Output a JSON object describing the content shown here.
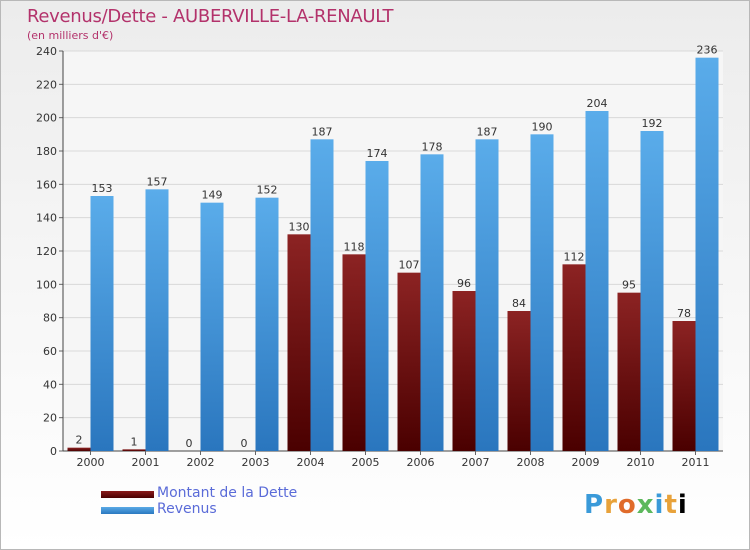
{
  "chart_data": {
    "type": "bar",
    "title": "Revenus/Dette - AUBERVILLE-LA-RENAULT",
    "subtitle": "(en milliers d'€)",
    "categories": [
      "2000",
      "2001",
      "2002",
      "2003",
      "2004",
      "2005",
      "2006",
      "2007",
      "2008",
      "2009",
      "2010",
      "2011"
    ],
    "series": [
      {
        "name": "Montant de la Dette",
        "color": "#7a0a0a",
        "values": [
          2,
          1,
          0,
          0,
          130,
          118,
          107,
          96,
          84,
          112,
          95,
          78
        ]
      },
      {
        "name": "Revenus",
        "color": "#3c8fd6",
        "values": [
          153,
          157,
          149,
          152,
          187,
          174,
          178,
          187,
          190,
          204,
          192,
          236
        ]
      }
    ],
    "ylim": [
      0,
      240
    ],
    "yticks": [
      0,
      20,
      40,
      60,
      80,
      100,
      120,
      140,
      160,
      180,
      200,
      220,
      240
    ],
    "grid": "horizontal",
    "legend_position": "bottom-left"
  },
  "branding": {
    "logo_letters": [
      "P",
      "r",
      "o",
      "x",
      "i",
      "t",
      "i"
    ]
  }
}
